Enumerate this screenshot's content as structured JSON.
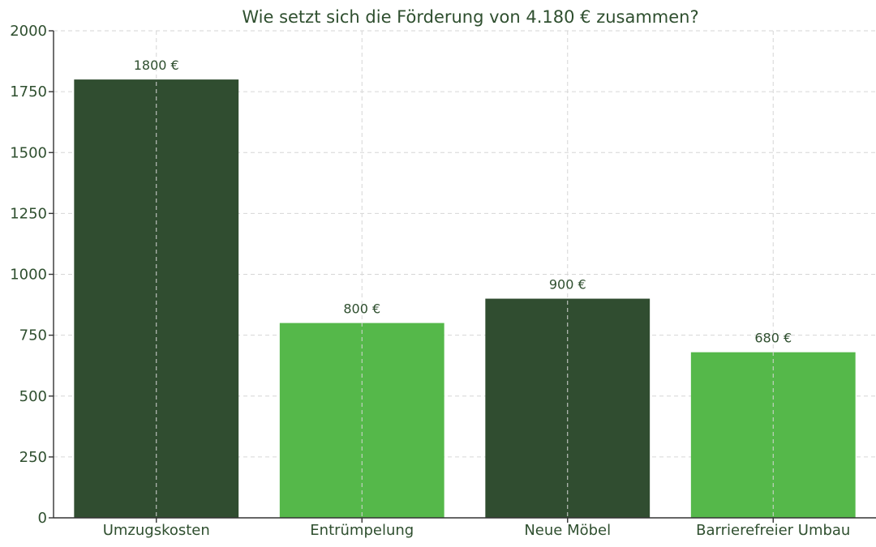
{
  "chart_data": {
    "type": "bar",
    "title": "Wie setzt sich die Förderung von 4.180 € zusammen?",
    "xlabel": "",
    "ylabel": "",
    "categories": [
      "Umzugskosten",
      "Entrümpelung",
      "Neue Möbel",
      "Barrierefreier Umbau"
    ],
    "values": [
      1800,
      800,
      900,
      680
    ],
    "data_labels": [
      "1800 €",
      "800 €",
      "900 €",
      "680 €"
    ],
    "ylim": [
      0,
      2000
    ],
    "yticks": [
      0,
      250,
      500,
      750,
      1000,
      1250,
      1500,
      1750,
      2000
    ],
    "grid": true,
    "bar_colors": [
      "#304d30",
      "#55b84a",
      "#304d30",
      "#55b84a"
    ],
    "text_color": "#2f4f2f"
  }
}
